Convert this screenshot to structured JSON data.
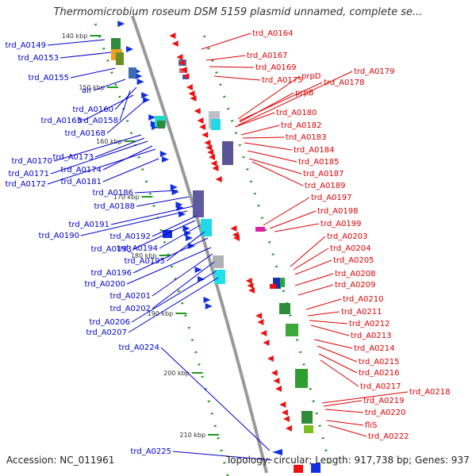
{
  "title": "Thermomicrobium roseum DSM 5159 plasmid unnamed, complete se...",
  "accession": "Accession: NC_011961",
  "topology": "Topology: circular; Length: 917,738 bp; Genes: 937",
  "colors": {
    "left_labels": "#0000cc",
    "right_labels": "#dd0000",
    "backbone": "#999999",
    "ticks": "#229922"
  },
  "ticks": [
    "140 kbp",
    "150 kbp",
    "160 kbp",
    "170 kbp",
    "180 kbp",
    "190 kbp",
    "200 kbp",
    "210 kbp"
  ],
  "left_labels": [
    "trd_A0149",
    "trd_A0153",
    "trd_A0155",
    "alr",
    "trd_A0160",
    "trd_A0158",
    "trd_A0163",
    "trd_A0168",
    "trd_A0170",
    "trd_A0173",
    "trd_A0171",
    "trd_A0174",
    "trd_A0172",
    "trd_A0181",
    "trd_A0186",
    "trd_A0188",
    "trd_A0191",
    "trd_A0190",
    "trd_A0192",
    "trd_A0193",
    "trd_A0194",
    "trd_A0195",
    "trd_A0196",
    "trd_A0200",
    "trd_A0201",
    "trd_A0202",
    "trd_A0206",
    "trd_A0207",
    "trd_A0224",
    "trd_A0225"
  ],
  "right_labels": [
    "trd_A0164",
    "trd_A0167",
    "trd_A0169",
    "prpD",
    "trd_A0175",
    "trd_A0179",
    "trd_A0178",
    "prpB",
    "trd_A0180",
    "trd_A0182",
    "trd_A0183",
    "trd_A0184",
    "trd_A0185",
    "trd_A0187",
    "trd_A0189",
    "trd_A0197",
    "trd_A0198",
    "trd_A0199",
    "trd_A0203",
    "trd_A0204",
    "trd_A0205",
    "trd_A0208",
    "trd_A0209",
    "trd_A0210",
    "trd_A0211",
    "trd_A0212",
    "trd_A0213",
    "trd_A0214",
    "trd_A0215",
    "trd_A0216",
    "trd_A0217",
    "trd_A0218",
    "trd_A0219",
    "trd_A0220",
    "fliS",
    "trd_A0222"
  ]
}
